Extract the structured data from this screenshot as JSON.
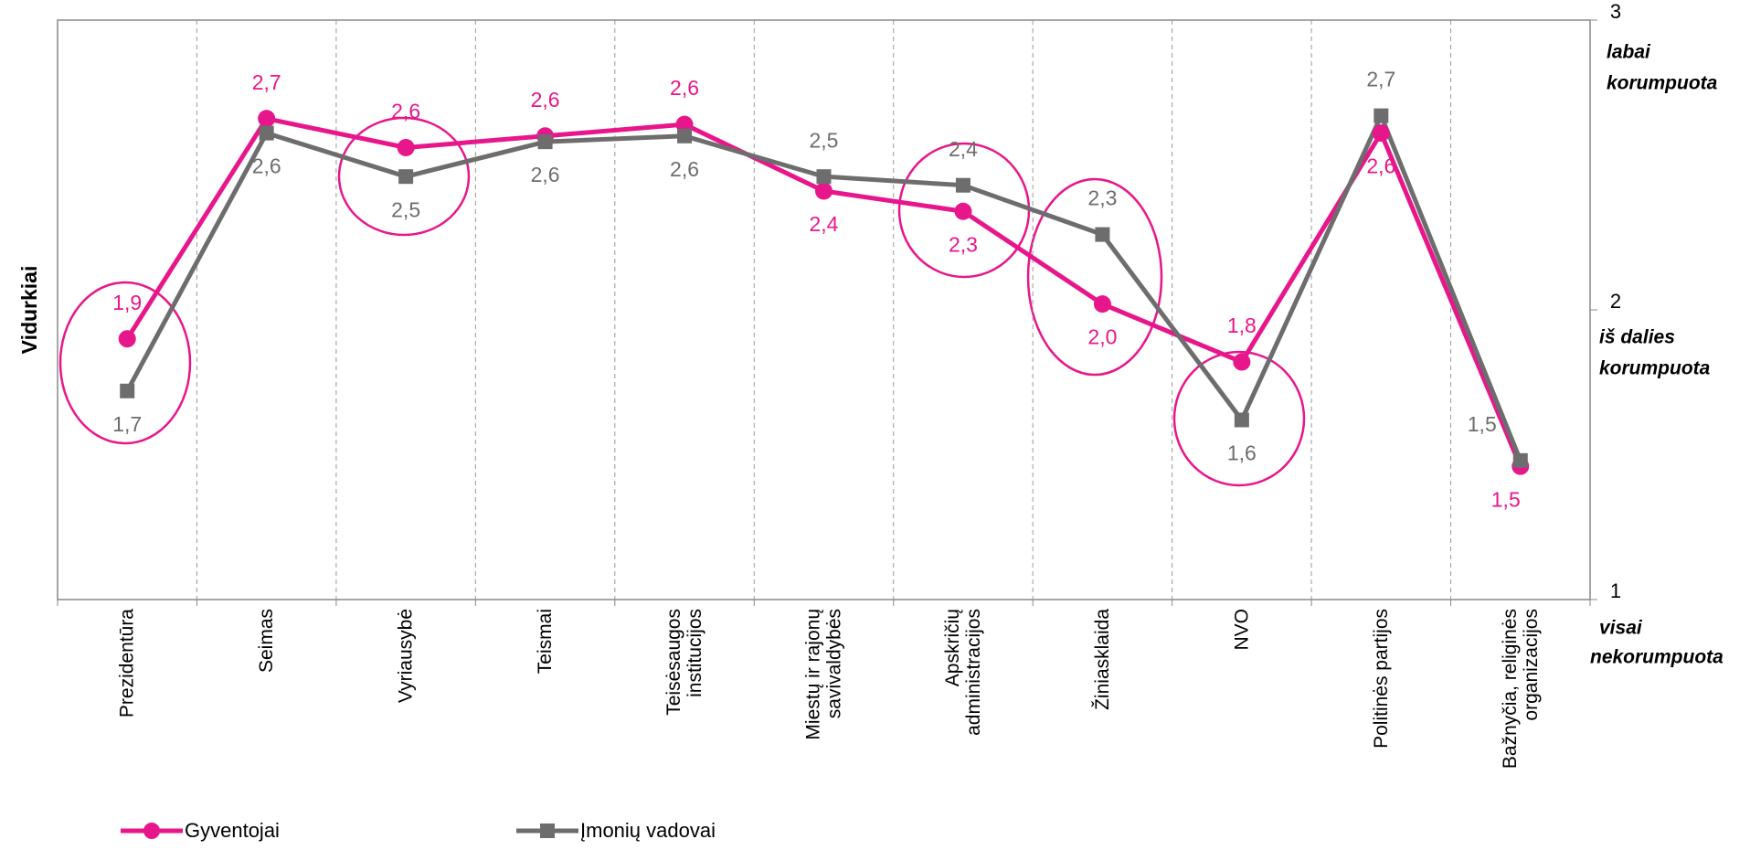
{
  "chart_data": {
    "type": "line",
    "y_label": "Vidurkiai",
    "annotations": [
      [
        "labai",
        "korumpuota"
      ],
      [
        "iš dalies",
        "korumpuota"
      ],
      [
        "visai",
        "nekorumpuota"
      ]
    ],
    "categories": [
      "Prezidentūra",
      "Seimas",
      "Vyriausybė",
      "Teismai",
      "Teisėsaugos institucijos",
      "Miestų ir rajonų savivaldybės",
      "Apskričių administracijos",
      "Žiniasklaida",
      "NVO",
      "Politinės partijos",
      "Bažnyčia, religinės organizacijos"
    ],
    "series": [
      {
        "name": "Gyventojai",
        "color": "#e8168b",
        "marker": "circle",
        "values": [
          1.9,
          2.66,
          2.56,
          2.6,
          2.64,
          2.41,
          2.34,
          2.02,
          1.82,
          2.61,
          1.46
        ],
        "value_labels": [
          "1,9",
          "2,7",
          "2,6",
          "2,6",
          "2,6",
          "2,4",
          "2,3",
          "2,0",
          "1,8",
          "2,6",
          "1,5"
        ]
      },
      {
        "name": "Įmonių vadovai",
        "color": "#6d6d6d",
        "marker": "square",
        "values": [
          1.72,
          2.61,
          2.46,
          2.58,
          2.6,
          2.46,
          2.43,
          2.26,
          1.62,
          2.67,
          1.48
        ],
        "value_labels": [
          "1,7",
          "2,6",
          "2,5",
          "2,6",
          "2,6",
          "2,5",
          "2,4",
          "2,3",
          "1,6",
          "2,7",
          "1,5"
        ]
      }
    ],
    "ylim": [
      1,
      3
    ],
    "yticks": [
      1,
      2,
      3
    ],
    "y_axis_side": "right",
    "grid": "vertical-dashed"
  }
}
